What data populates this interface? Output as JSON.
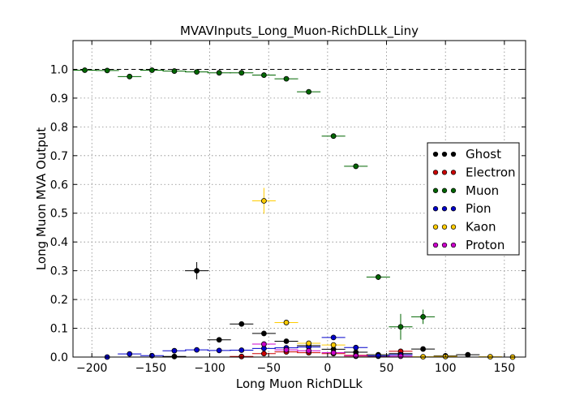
{
  "chart_data": {
    "type": "scatter",
    "title": "MVAVInputs_Long_Muon-RichDLLk_Liny",
    "xlabel": "Long Muon RichDLLk",
    "ylabel": "Long Muon MVA Output",
    "xlim": [
      -216,
      168
    ],
    "ylim": [
      0,
      1.1
    ],
    "xticks": [
      -200,
      -150,
      -100,
      -50,
      0,
      50,
      100,
      150
    ],
    "yticks": [
      0.0,
      0.1,
      0.2,
      0.3,
      0.4,
      0.5,
      0.6,
      0.7,
      0.8,
      0.9,
      1.0
    ],
    "grid": true,
    "reference_line": 1.0,
    "legend_position": "right",
    "series": [
      {
        "name": "Ghost",
        "color": "#000000",
        "points": [
          {
            "x": -111,
            "y": 0.3,
            "xerr": 10,
            "yerr": 0.03
          },
          {
            "x": -92,
            "y": 0.06,
            "xerr": 10,
            "yerr": 0.005
          },
          {
            "x": -73,
            "y": 0.115,
            "xerr": 10,
            "yerr": 0.004
          },
          {
            "x": -54,
            "y": 0.082,
            "xerr": 10,
            "yerr": 0.004
          },
          {
            "x": -35,
            "y": 0.055,
            "xerr": 10,
            "yerr": 0.003
          },
          {
            "x": -16,
            "y": 0.04,
            "xerr": 10,
            "yerr": 0.003
          },
          {
            "x": 5,
            "y": 0.027,
            "xerr": 10,
            "yerr": 0.002
          },
          {
            "x": 24,
            "y": 0.017,
            "xerr": 10,
            "yerr": 0.002
          },
          {
            "x": 43,
            "y": 0.008,
            "xerr": 10,
            "yerr": 0.002
          },
          {
            "x": 62,
            "y": 0.012,
            "xerr": 10,
            "yerr": 0.002
          },
          {
            "x": 81,
            "y": 0.028,
            "xerr": 10,
            "yerr": 0.002
          },
          {
            "x": 100,
            "y": 0.004,
            "xerr": 10,
            "yerr": 0.001
          },
          {
            "x": 119,
            "y": 0.008,
            "xerr": 10,
            "yerr": 0.001
          },
          {
            "x": -130,
            "y": 0.002,
            "xerr": 10,
            "yerr": 0.001
          }
        ]
      },
      {
        "name": "Electron",
        "color": "#cc0000",
        "points": [
          {
            "x": -73,
            "y": 0.002,
            "xerr": 10,
            "yerr": 0.001
          },
          {
            "x": -54,
            "y": 0.012,
            "xerr": 10,
            "yerr": 0.002
          },
          {
            "x": -35,
            "y": 0.018,
            "xerr": 10,
            "yerr": 0.002
          },
          {
            "x": -16,
            "y": 0.015,
            "xerr": 10,
            "yerr": 0.002
          },
          {
            "x": 5,
            "y": 0.012,
            "xerr": 10,
            "yerr": 0.002
          },
          {
            "x": 24,
            "y": 0.006,
            "xerr": 10,
            "yerr": 0.001
          },
          {
            "x": 43,
            "y": 0.003,
            "xerr": 10,
            "yerr": 0.001
          },
          {
            "x": 62,
            "y": 0.02,
            "xerr": 10,
            "yerr": 0.002
          }
        ]
      },
      {
        "name": "Muon",
        "color": "#006600",
        "points": [
          {
            "x": -206,
            "y": 0.997,
            "xerr": 10,
            "yerr": 0.002
          },
          {
            "x": -187,
            "y": 0.996,
            "xerr": 10,
            "yerr": 0.002
          },
          {
            "x": -168,
            "y": 0.975,
            "xerr": 10,
            "yerr": 0.003
          },
          {
            "x": -149,
            "y": 0.997,
            "xerr": 10,
            "yerr": 0.002
          },
          {
            "x": -130,
            "y": 0.994,
            "xerr": 10,
            "yerr": 0.002
          },
          {
            "x": -111,
            "y": 0.991,
            "xerr": 10,
            "yerr": 0.002
          },
          {
            "x": -92,
            "y": 0.988,
            "xerr": 10,
            "yerr": 0.002
          },
          {
            "x": -73,
            "y": 0.988,
            "xerr": 10,
            "yerr": 0.002
          },
          {
            "x": -54,
            "y": 0.98,
            "xerr": 10,
            "yerr": 0.002
          },
          {
            "x": -35,
            "y": 0.967,
            "xerr": 10,
            "yerr": 0.003
          },
          {
            "x": -16,
            "y": 0.922,
            "xerr": 10,
            "yerr": 0.004
          },
          {
            "x": 5,
            "y": 0.768,
            "xerr": 10,
            "yerr": 0.006
          },
          {
            "x": 24,
            "y": 0.663,
            "xerr": 10,
            "yerr": 0.007
          },
          {
            "x": 43,
            "y": 0.278,
            "xerr": 10,
            "yerr": 0.01
          },
          {
            "x": 62,
            "y": 0.105,
            "xerr": 10,
            "yerr": 0.045
          },
          {
            "x": 81,
            "y": 0.14,
            "xerr": 10,
            "yerr": 0.025
          }
        ]
      },
      {
        "name": "Pion",
        "color": "#0000cc",
        "points": [
          {
            "x": -187,
            "y": 0.0,
            "xerr": 10,
            "yerr": 0.001
          },
          {
            "x": -168,
            "y": 0.011,
            "xerr": 10,
            "yerr": 0.002
          },
          {
            "x": -149,
            "y": 0.005,
            "xerr": 10,
            "yerr": 0.001
          },
          {
            "x": -130,
            "y": 0.022,
            "xerr": 10,
            "yerr": 0.002
          },
          {
            "x": -111,
            "y": 0.025,
            "xerr": 10,
            "yerr": 0.002
          },
          {
            "x": -92,
            "y": 0.023,
            "xerr": 10,
            "yerr": 0.002
          },
          {
            "x": -73,
            "y": 0.024,
            "xerr": 10,
            "yerr": 0.002
          },
          {
            "x": -54,
            "y": 0.03,
            "xerr": 10,
            "yerr": 0.002
          },
          {
            "x": -35,
            "y": 0.032,
            "xerr": 10,
            "yerr": 0.002
          },
          {
            "x": -16,
            "y": 0.035,
            "xerr": 10,
            "yerr": 0.002
          },
          {
            "x": 5,
            "y": 0.068,
            "xerr": 10,
            "yerr": 0.003
          },
          {
            "x": 24,
            "y": 0.033,
            "xerr": 10,
            "yerr": 0.002
          },
          {
            "x": 43,
            "y": 0.004,
            "xerr": 10,
            "yerr": 0.001
          },
          {
            "x": 62,
            "y": 0.008,
            "xerr": 10,
            "yerr": 0.001
          }
        ]
      },
      {
        "name": "Kaon",
        "color": "#ffcc00",
        "points": [
          {
            "x": -54,
            "y": 0.543,
            "xerr": 10,
            "yerr": 0.045
          },
          {
            "x": -35,
            "y": 0.12,
            "xerr": 10,
            "yerr": 0.006
          },
          {
            "x": -16,
            "y": 0.048,
            "xerr": 10,
            "yerr": 0.003
          },
          {
            "x": 5,
            "y": 0.042,
            "xerr": 10,
            "yerr": 0.003
          },
          {
            "x": 24,
            "y": 0.003,
            "xerr": 10,
            "yerr": 0.001
          },
          {
            "x": 81,
            "y": 0.001,
            "xerr": 10,
            "yerr": 0.001
          },
          {
            "x": 100,
            "y": 0.002,
            "xerr": 10,
            "yerr": 0.001
          },
          {
            "x": 138,
            "y": 0.001,
            "xerr": 10,
            "yerr": 0.001
          },
          {
            "x": 157,
            "y": 0.0,
            "xerr": 10,
            "yerr": 0.001
          }
        ]
      },
      {
        "name": "Proton",
        "color": "#cc00cc",
        "points": [
          {
            "x": -54,
            "y": 0.045,
            "xerr": 10,
            "yerr": 0.01
          },
          {
            "x": -35,
            "y": 0.025,
            "xerr": 10,
            "yerr": 0.004
          },
          {
            "x": -16,
            "y": 0.022,
            "xerr": 10,
            "yerr": 0.003
          },
          {
            "x": 5,
            "y": 0.015,
            "xerr": 10,
            "yerr": 0.003
          },
          {
            "x": 24,
            "y": 0.004,
            "xerr": 10,
            "yerr": 0.002
          },
          {
            "x": 62,
            "y": 0.003,
            "xerr": 10,
            "yerr": 0.001
          }
        ]
      }
    ]
  }
}
